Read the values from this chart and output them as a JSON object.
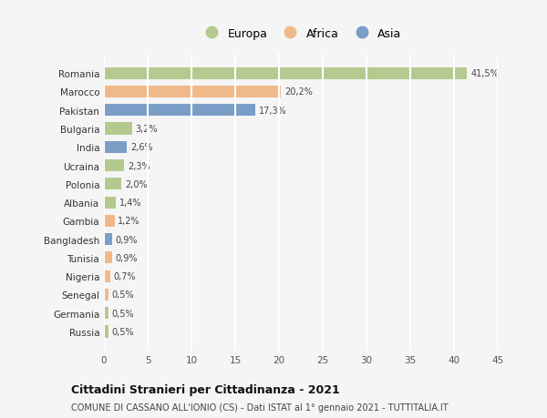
{
  "countries": [
    "Romania",
    "Marocco",
    "Pakistan",
    "Bulgaria",
    "India",
    "Ucraina",
    "Polonia",
    "Albania",
    "Gambia",
    "Bangladesh",
    "Tunisia",
    "Nigeria",
    "Senegal",
    "Germania",
    "Russia"
  ],
  "values": [
    41.5,
    20.2,
    17.3,
    3.2,
    2.6,
    2.3,
    2.0,
    1.4,
    1.2,
    0.9,
    0.9,
    0.7,
    0.5,
    0.5,
    0.5
  ],
  "labels": [
    "41,5%",
    "20,2%",
    "17,3%",
    "3,2%",
    "2,6%",
    "2,3%",
    "2,0%",
    "1,4%",
    "1,2%",
    "0,9%",
    "0,9%",
    "0,7%",
    "0,5%",
    "0,5%",
    "0,5%"
  ],
  "colors": [
    "#b5c98e",
    "#f0b98a",
    "#7b9ec7",
    "#b5c98e",
    "#7b9ec7",
    "#b5c98e",
    "#b5c98e",
    "#b5c98e",
    "#f0b98a",
    "#7b9ec7",
    "#f0b98a",
    "#f0b98a",
    "#f0b98a",
    "#b5c98e",
    "#b5c98e"
  ],
  "continents": [
    "Europa",
    "Africa",
    "Asia"
  ],
  "continent_colors": [
    "#b5c98e",
    "#f0b98a",
    "#7b9ec7"
  ],
  "title": "Cittadini Stranieri per Cittadinanza - 2021",
  "subtitle": "COMUNE DI CASSANO ALL'IONIO (CS) - Dati ISTAT al 1° gennaio 2021 - TUTTITALIA.IT",
  "xlim": [
    0,
    45
  ],
  "xticks": [
    0,
    5,
    10,
    15,
    20,
    25,
    30,
    35,
    40,
    45
  ],
  "background_color": "#f5f5f5",
  "grid_color": "#ffffff",
  "bar_height": 0.65
}
